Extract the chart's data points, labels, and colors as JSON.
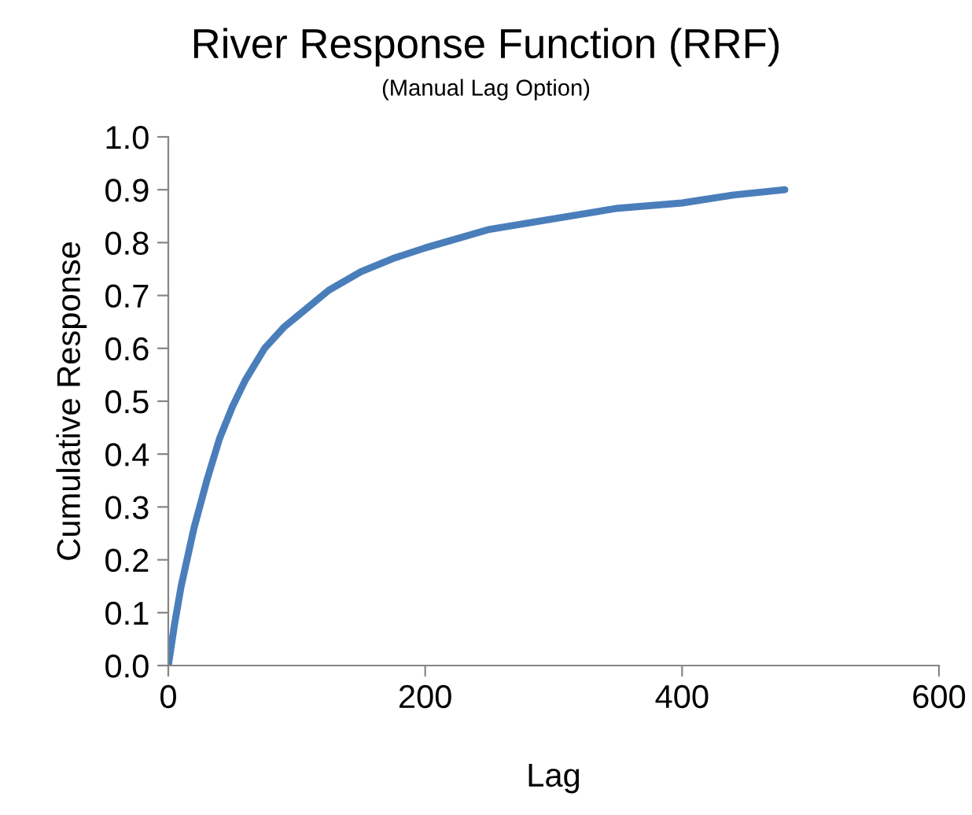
{
  "chart_data": {
    "type": "line",
    "title": "River Response Function (RRF)",
    "subtitle": "(Manual Lag Option)",
    "xlabel": "Lag",
    "ylabel": "Cumulative Response",
    "series": [
      {
        "color": "#4a7ebb",
        "x": [
          0,
          5,
          10,
          20,
          30,
          40,
          50,
          60,
          75,
          90,
          100,
          125,
          150,
          175,
          200,
          250,
          300,
          350,
          400,
          440,
          480
        ],
        "values": [
          0,
          0.08,
          0.15,
          0.26,
          0.35,
          0.43,
          0.49,
          0.54,
          0.6,
          0.64,
          0.66,
          0.71,
          0.745,
          0.77,
          0.79,
          0.825,
          0.845,
          0.865,
          0.875,
          0.89,
          0.9
        ]
      }
    ],
    "xlim": [
      0,
      600
    ],
    "xticks": [
      0,
      200,
      400,
      600
    ],
    "ylim": [
      0,
      1.0
    ],
    "yticks": [
      {
        "value": 0,
        "label": "0.0"
      },
      {
        "value": 0.1,
        "label": "0.1"
      },
      {
        "value": 0.2,
        "label": "0.2"
      },
      {
        "value": 0.3,
        "label": "0.3"
      },
      {
        "value": 0.4,
        "label": "0.4"
      },
      {
        "value": 0.5,
        "label": "0.5"
      },
      {
        "value": 0.6,
        "label": "0.6"
      },
      {
        "value": 0.7,
        "label": "0.7"
      },
      {
        "value": 0.8,
        "label": "0.8"
      },
      {
        "value": 0.9,
        "label": "0.9"
      },
      {
        "value": 1.0,
        "label": "1.0"
      }
    ],
    "marker": "none",
    "line_style": "solid"
  }
}
